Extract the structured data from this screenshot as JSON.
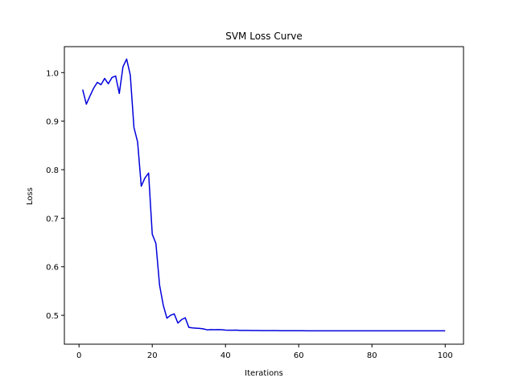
{
  "chart_data": {
    "type": "line",
    "title": "SVM Loss Curve",
    "xlabel": "Iterations",
    "ylabel": "Loss",
    "xlim": [
      -4.0,
      105.0
    ],
    "ylim": [
      0.4405,
      1.0535
    ],
    "xticks": [
      0,
      20,
      40,
      60,
      80,
      100
    ],
    "yticks": [
      0.5,
      0.6,
      0.7,
      0.8,
      0.9,
      1.0
    ],
    "xtick_labels": [
      "0",
      "20",
      "40",
      "60",
      "80",
      "100"
    ],
    "ytick_labels": [
      "0.5",
      "0.6",
      "0.7",
      "0.8",
      "0.9",
      "1.0"
    ],
    "grid": false,
    "series": [
      {
        "color": "#0000dd",
        "x": [
          1,
          2,
          3,
          4,
          5,
          6,
          7,
          8,
          9,
          10,
          11,
          12,
          13,
          14,
          15,
          16,
          17,
          18,
          19,
          20,
          21,
          22,
          23,
          24,
          25,
          26,
          27,
          28,
          29,
          30,
          31,
          32,
          33,
          34,
          35,
          36,
          37,
          38,
          39,
          40,
          41,
          42,
          43,
          44,
          45,
          46,
          47,
          48,
          49,
          50,
          51,
          52,
          53,
          54,
          55,
          56,
          57,
          58,
          59,
          60,
          61,
          62,
          63,
          64,
          65,
          66,
          67,
          68,
          69,
          70,
          71,
          72,
          73,
          74,
          75,
          76,
          77,
          78,
          79,
          80,
          81,
          82,
          83,
          84,
          85,
          86,
          87,
          88,
          89,
          90,
          91,
          92,
          93,
          94,
          95,
          96,
          97,
          98,
          99,
          100
        ],
        "y": [
          0.965,
          0.935,
          0.952,
          0.968,
          0.98,
          0.975,
          0.988,
          0.977,
          0.99,
          0.993,
          0.957,
          1.012,
          1.028,
          0.995,
          0.887,
          0.857,
          0.766,
          0.783,
          0.793,
          0.667,
          0.648,
          0.562,
          0.521,
          0.494,
          0.5,
          0.503,
          0.484,
          0.491,
          0.495,
          0.475,
          0.474,
          0.4735,
          0.473,
          0.472,
          0.47,
          0.4705,
          0.4703,
          0.4705,
          0.4704,
          0.4695,
          0.4693,
          0.4692,
          0.4694,
          0.4689,
          0.4688,
          0.4688,
          0.4686,
          0.4687,
          0.4686,
          0.4685,
          0.4685,
          0.4684,
          0.4684,
          0.4684,
          0.4683,
          0.4683,
          0.4683,
          0.4682,
          0.4682,
          0.4682,
          0.4682,
          0.4681,
          0.4681,
          0.4681,
          0.4681,
          0.4681,
          0.468,
          0.468,
          0.468,
          0.468,
          0.468,
          0.468,
          0.468,
          0.468,
          0.468,
          0.468,
          0.468,
          0.468,
          0.468,
          0.468,
          0.468,
          0.468,
          0.468,
          0.468,
          0.468,
          0.468,
          0.468,
          0.468,
          0.468,
          0.468,
          0.468,
          0.468,
          0.468,
          0.468,
          0.468,
          0.468,
          0.468,
          0.468,
          0.468,
          0.468
        ]
      }
    ]
  }
}
